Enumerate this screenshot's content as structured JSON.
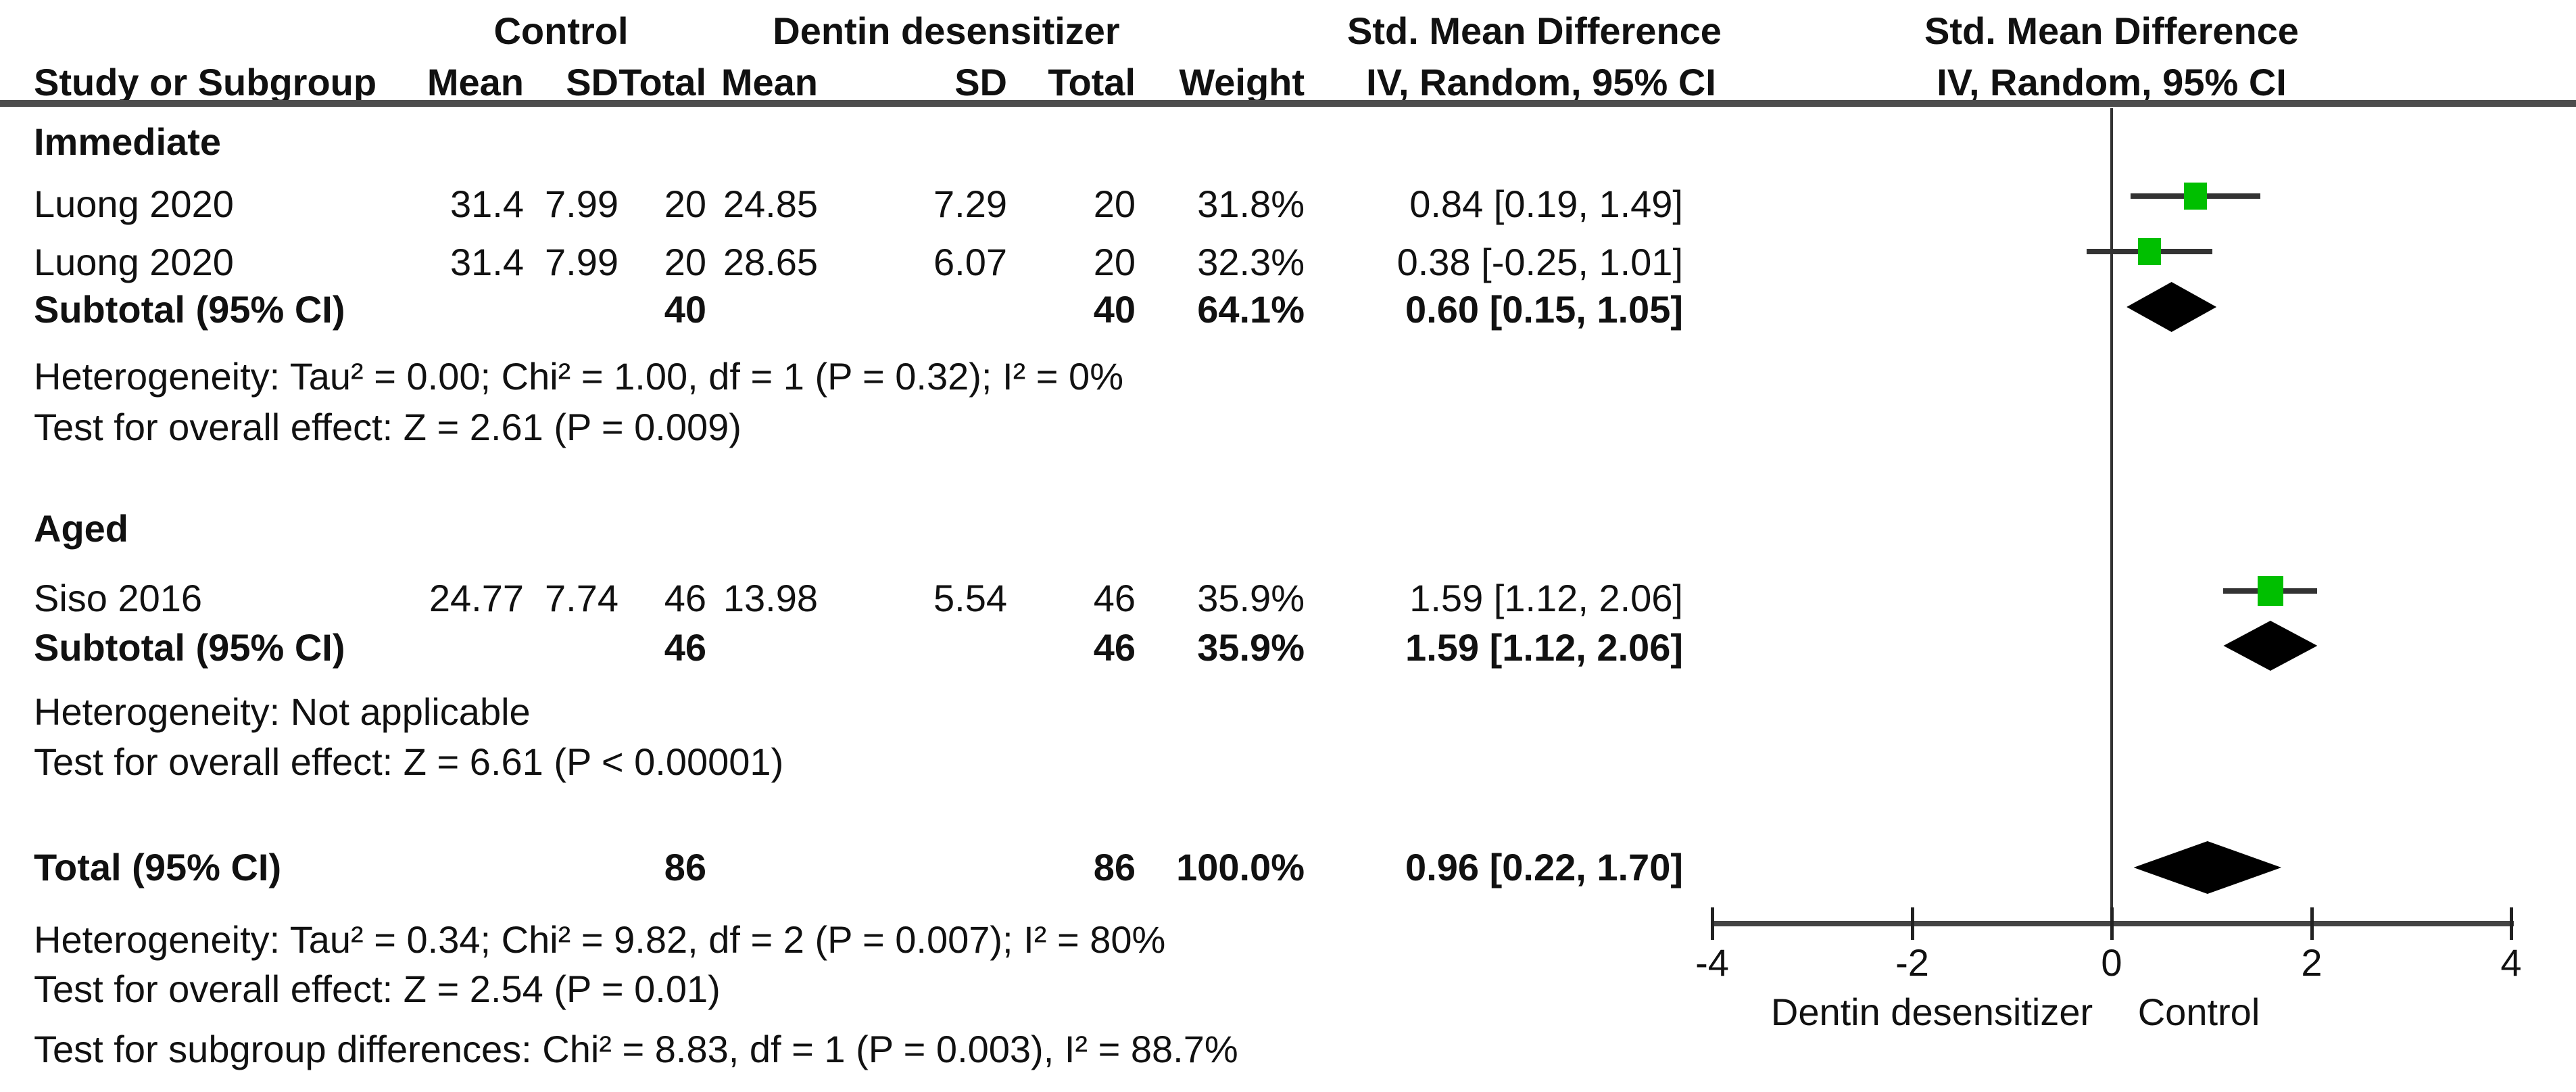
{
  "header": {
    "row1": {
      "control": "Control",
      "treatment": "Dentin desensitizer",
      "effect_left": "Std. Mean Difference",
      "effect_right": "Std. Mean Difference"
    },
    "row2": {
      "study": "Study or Subgroup",
      "mean": "Mean",
      "sd": "SD",
      "total": "Total",
      "weight": "Weight",
      "method_left": "IV, Random, 95% CI",
      "method_right": "IV, Random, 95% CI"
    }
  },
  "sections": [
    {
      "name": "Immediate",
      "studies": [
        {
          "label": "Luong 2020",
          "mean1": "31.4",
          "sd1": "7.99",
          "n1": "20",
          "mean2": "24.85",
          "sd2": "7.29",
          "n2": "20",
          "weight": "31.8%",
          "ci": "0.84 [0.19, 1.49]"
        },
        {
          "label": "Luong 2020",
          "mean1": "31.4",
          "sd1": "7.99",
          "n1": "20",
          "mean2": "28.65",
          "sd2": "6.07",
          "n2": "20",
          "weight": "32.3%",
          "ci": "0.38 [-0.25, 1.01]"
        }
      ],
      "subtotal": {
        "label": "Subtotal (95% CI)",
        "n1": "40",
        "n2": "40",
        "weight": "64.1%",
        "ci": "0.60 [0.15, 1.05]"
      },
      "heterogeneity": "Heterogeneity: Tau² = 0.00; Chi² = 1.00, df = 1 (P = 0.32); I² = 0%",
      "overall": "Test for overall effect: Z = 2.61 (P = 0.009)"
    },
    {
      "name": "Aged",
      "studies": [
        {
          "label": "Siso 2016",
          "mean1": "24.77",
          "sd1": "7.74",
          "n1": "46",
          "mean2": "13.98",
          "sd2": "5.54",
          "n2": "46",
          "weight": "35.9%",
          "ci": "1.59 [1.12, 2.06]"
        }
      ],
      "subtotal": {
        "label": "Subtotal (95% CI)",
        "n1": "46",
        "n2": "46",
        "weight": "35.9%",
        "ci": "1.59 [1.12, 2.06]"
      },
      "heterogeneity": "Heterogeneity: Not applicable",
      "overall": "Test for overall effect: Z = 6.61 (P < 0.00001)"
    }
  ],
  "total": {
    "label": "Total (95% CI)",
    "n1": "86",
    "n2": "86",
    "weight": "100.0%",
    "ci": "0.96 [0.22, 1.70]"
  },
  "footer": {
    "heterogeneity": "Heterogeneity: Tau² = 0.34; Chi² = 9.82, df = 2 (P = 0.007); I² = 80%",
    "overall": "Test for overall effect: Z = 2.54 (P = 0.01)",
    "subgroup": "Test for subgroup differences: Chi² = 8.83, df = 1 (P = 0.003), I² = 88.7%"
  },
  "axis": {
    "ticks": [
      "-4",
      "-2",
      "0",
      "2",
      "4"
    ],
    "left_caption": "Dentin desensitizer",
    "right_caption": "Control"
  },
  "colors": {
    "square": "#00bf00",
    "diamond": "#000000",
    "ci_line": "#333333",
    "axis": "#444444"
  },
  "chart_data": {
    "type": "scatter",
    "subtype": "forest-plot",
    "title": "Std. Mean Difference  IV, Random, 95% CI",
    "xlabel_left": "Dentin desensitizer",
    "xlabel_right": "Control",
    "xlim": [
      -4,
      4
    ],
    "x_ticks": [
      -4,
      -2,
      0,
      2,
      4
    ],
    "grid": false,
    "studies": [
      {
        "group": "Immediate",
        "study": "Luong 2020",
        "est": 0.84,
        "lo": 0.19,
        "hi": 1.49,
        "weight_pct": 31.8
      },
      {
        "group": "Immediate",
        "study": "Luong 2020",
        "est": 0.38,
        "lo": -0.25,
        "hi": 1.01,
        "weight_pct": 32.3
      },
      {
        "group": "Aged",
        "study": "Siso 2016",
        "est": 1.59,
        "lo": 1.12,
        "hi": 2.06,
        "weight_pct": 35.9
      }
    ],
    "summaries": [
      {
        "label": "Subtotal Immediate (95% CI)",
        "est": 0.6,
        "lo": 0.15,
        "hi": 1.05,
        "weight_pct": 64.1
      },
      {
        "label": "Subtotal Aged (95% CI)",
        "est": 1.59,
        "lo": 1.12,
        "hi": 2.06,
        "weight_pct": 35.9
      },
      {
        "label": "Total (95% CI)",
        "est": 0.96,
        "lo": 0.22,
        "hi": 1.7,
        "weight_pct": 100.0
      }
    ]
  }
}
